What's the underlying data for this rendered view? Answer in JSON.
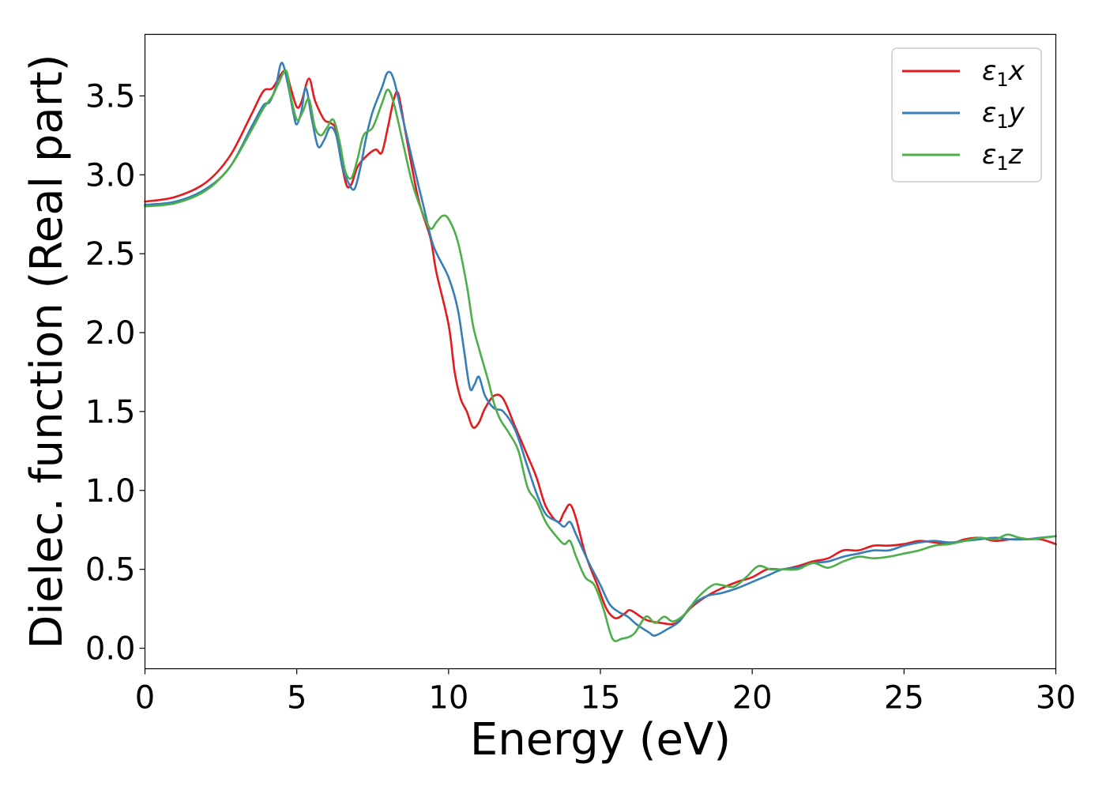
{
  "chart_data": {
    "type": "line",
    "title": "",
    "xlabel": "Energy (eV)",
    "ylabel": "Dielec. function (Real part)",
    "xlim": [
      0,
      30
    ],
    "ylim": [
      -0.13,
      3.89
    ],
    "xticks": [
      0,
      5,
      10,
      15,
      20,
      25,
      30
    ],
    "yticks": [
      0.0,
      0.5,
      1.0,
      1.5,
      2.0,
      2.5,
      3.0,
      3.5
    ],
    "xtick_labels": [
      "0",
      "5",
      "10",
      "15",
      "20",
      "25",
      "30"
    ],
    "ytick_labels": [
      "0.0",
      "0.5",
      "1.0",
      "1.5",
      "2.0",
      "2.5",
      "3.0",
      "3.5"
    ],
    "grid": false,
    "legend_position": "top-right",
    "series": [
      {
        "name": "ε₁x",
        "legend_main": "ε",
        "legend_sub": "1",
        "legend_tail": "x",
        "color": "#e41a1c",
        "points": [
          [
            0,
            2.83
          ],
          [
            1,
            2.86
          ],
          [
            2,
            2.95
          ],
          [
            2.8,
            3.12
          ],
          [
            3.5,
            3.38
          ],
          [
            3.9,
            3.53
          ],
          [
            4.2,
            3.55
          ],
          [
            4.6,
            3.66
          ],
          [
            4.8,
            3.55
          ],
          [
            5.0,
            3.43
          ],
          [
            5.15,
            3.46
          ],
          [
            5.4,
            3.61
          ],
          [
            5.6,
            3.47
          ],
          [
            5.9,
            3.35
          ],
          [
            6.1,
            3.33
          ],
          [
            6.3,
            3.28
          ],
          [
            6.5,
            3.05
          ],
          [
            6.65,
            2.93
          ],
          [
            6.8,
            2.94
          ],
          [
            7.0,
            3.05
          ],
          [
            7.3,
            3.12
          ],
          [
            7.6,
            3.16
          ],
          [
            7.8,
            3.14
          ],
          [
            8.0,
            3.3
          ],
          [
            8.2,
            3.48
          ],
          [
            8.35,
            3.51
          ],
          [
            8.6,
            3.25
          ],
          [
            9.0,
            2.85
          ],
          [
            9.4,
            2.6
          ],
          [
            9.6,
            2.38
          ],
          [
            10.0,
            2.05
          ],
          [
            10.2,
            1.75
          ],
          [
            10.4,
            1.58
          ],
          [
            10.6,
            1.5
          ],
          [
            10.8,
            1.4
          ],
          [
            11.0,
            1.43
          ],
          [
            11.2,
            1.52
          ],
          [
            11.5,
            1.6
          ],
          [
            11.8,
            1.58
          ],
          [
            12.2,
            1.4
          ],
          [
            12.6,
            1.22
          ],
          [
            12.9,
            1.08
          ],
          [
            13.2,
            0.9
          ],
          [
            13.6,
            0.8
          ],
          [
            13.8,
            0.86
          ],
          [
            14.0,
            0.91
          ],
          [
            14.2,
            0.82
          ],
          [
            14.5,
            0.6
          ],
          [
            14.9,
            0.4
          ],
          [
            15.2,
            0.25
          ],
          [
            15.5,
            0.19
          ],
          [
            15.8,
            0.22
          ],
          [
            16.0,
            0.24
          ],
          [
            16.5,
            0.18
          ],
          [
            17.0,
            0.16
          ],
          [
            17.5,
            0.16
          ],
          [
            18.0,
            0.26
          ],
          [
            18.5,
            0.33
          ],
          [
            19.0,
            0.38
          ],
          [
            19.5,
            0.42
          ],
          [
            20.0,
            0.45
          ],
          [
            20.5,
            0.5
          ],
          [
            21.0,
            0.5
          ],
          [
            21.5,
            0.52
          ],
          [
            22.0,
            0.55
          ],
          [
            22.5,
            0.57
          ],
          [
            23.0,
            0.62
          ],
          [
            23.5,
            0.62
          ],
          [
            24.0,
            0.65
          ],
          [
            24.5,
            0.65
          ],
          [
            25.0,
            0.66
          ],
          [
            25.5,
            0.68
          ],
          [
            26.0,
            0.67
          ],
          [
            26.5,
            0.66
          ],
          [
            27.0,
            0.69
          ],
          [
            27.5,
            0.7
          ],
          [
            28.0,
            0.68
          ],
          [
            28.5,
            0.69
          ],
          [
            29.0,
            0.69
          ],
          [
            29.5,
            0.69
          ],
          [
            30.0,
            0.66
          ]
        ]
      },
      {
        "name": "ε₁y",
        "legend_main": "ε",
        "legend_sub": "1",
        "legend_tail": "y",
        "color": "#377eb8",
        "points": [
          [
            0,
            2.81
          ],
          [
            1,
            2.83
          ],
          [
            2,
            2.91
          ],
          [
            2.8,
            3.05
          ],
          [
            3.5,
            3.3
          ],
          [
            3.9,
            3.44
          ],
          [
            4.1,
            3.46
          ],
          [
            4.3,
            3.55
          ],
          [
            4.5,
            3.71
          ],
          [
            4.7,
            3.58
          ],
          [
            4.9,
            3.38
          ],
          [
            5.0,
            3.32
          ],
          [
            5.15,
            3.4
          ],
          [
            5.3,
            3.55
          ],
          [
            5.5,
            3.35
          ],
          [
            5.7,
            3.18
          ],
          [
            5.9,
            3.22
          ],
          [
            6.1,
            3.3
          ],
          [
            6.3,
            3.25
          ],
          [
            6.5,
            3.05
          ],
          [
            6.7,
            2.95
          ],
          [
            6.9,
            2.91
          ],
          [
            7.1,
            3.05
          ],
          [
            7.3,
            3.25
          ],
          [
            7.5,
            3.4
          ],
          [
            7.8,
            3.55
          ],
          [
            8.0,
            3.65
          ],
          [
            8.2,
            3.6
          ],
          [
            8.5,
            3.35
          ],
          [
            8.8,
            3.1
          ],
          [
            9.2,
            2.78
          ],
          [
            9.5,
            2.55
          ],
          [
            10.0,
            2.35
          ],
          [
            10.3,
            2.15
          ],
          [
            10.5,
            1.9
          ],
          [
            10.7,
            1.65
          ],
          [
            10.85,
            1.67
          ],
          [
            11.0,
            1.72
          ],
          [
            11.2,
            1.6
          ],
          [
            11.5,
            1.52
          ],
          [
            11.8,
            1.5
          ],
          [
            12.2,
            1.38
          ],
          [
            12.6,
            1.15
          ],
          [
            12.9,
            0.98
          ],
          [
            13.2,
            0.85
          ],
          [
            13.6,
            0.8
          ],
          [
            13.8,
            0.77
          ],
          [
            14.0,
            0.8
          ],
          [
            14.2,
            0.72
          ],
          [
            14.6,
            0.55
          ],
          [
            15.0,
            0.4
          ],
          [
            15.3,
            0.28
          ],
          [
            15.6,
            0.23
          ],
          [
            15.9,
            0.2
          ],
          [
            16.2,
            0.15
          ],
          [
            16.6,
            0.1
          ],
          [
            16.8,
            0.08
          ],
          [
            17.2,
            0.12
          ],
          [
            17.6,
            0.17
          ],
          [
            18.0,
            0.27
          ],
          [
            18.5,
            0.33
          ],
          [
            19.0,
            0.35
          ],
          [
            19.5,
            0.38
          ],
          [
            20.0,
            0.42
          ],
          [
            20.5,
            0.46
          ],
          [
            21.0,
            0.5
          ],
          [
            21.5,
            0.51
          ],
          [
            22.0,
            0.54
          ],
          [
            22.5,
            0.55
          ],
          [
            23.0,
            0.58
          ],
          [
            23.5,
            0.6
          ],
          [
            24.0,
            0.62
          ],
          [
            24.5,
            0.62
          ],
          [
            25.0,
            0.65
          ],
          [
            25.5,
            0.67
          ],
          [
            26.0,
            0.68
          ],
          [
            26.5,
            0.67
          ],
          [
            27.0,
            0.68
          ],
          [
            27.5,
            0.69
          ],
          [
            28.0,
            0.7
          ],
          [
            28.5,
            0.69
          ],
          [
            29.0,
            0.69
          ],
          [
            29.5,
            0.7
          ],
          [
            30.0,
            0.71
          ]
        ]
      },
      {
        "name": "ε₁z",
        "legend_main": "ε",
        "legend_sub": "1",
        "legend_tail": "z",
        "color": "#4daf4a",
        "points": [
          [
            0,
            2.8
          ],
          [
            1,
            2.82
          ],
          [
            2,
            2.9
          ],
          [
            2.8,
            3.05
          ],
          [
            3.5,
            3.28
          ],
          [
            3.9,
            3.42
          ],
          [
            4.2,
            3.5
          ],
          [
            4.4,
            3.58
          ],
          [
            4.65,
            3.66
          ],
          [
            4.8,
            3.5
          ],
          [
            5.0,
            3.35
          ],
          [
            5.2,
            3.4
          ],
          [
            5.4,
            3.48
          ],
          [
            5.6,
            3.3
          ],
          [
            5.8,
            3.25
          ],
          [
            6.0,
            3.3
          ],
          [
            6.2,
            3.35
          ],
          [
            6.4,
            3.22
          ],
          [
            6.6,
            3.02
          ],
          [
            6.8,
            2.98
          ],
          [
            7.0,
            3.1
          ],
          [
            7.2,
            3.25
          ],
          [
            7.5,
            3.3
          ],
          [
            7.8,
            3.45
          ],
          [
            8.0,
            3.54
          ],
          [
            8.2,
            3.45
          ],
          [
            8.5,
            3.2
          ],
          [
            8.8,
            2.95
          ],
          [
            9.1,
            2.78
          ],
          [
            9.4,
            2.66
          ],
          [
            9.6,
            2.7
          ],
          [
            9.8,
            2.74
          ],
          [
            10.0,
            2.72
          ],
          [
            10.3,
            2.58
          ],
          [
            10.6,
            2.3
          ],
          [
            10.8,
            2.05
          ],
          [
            11.0,
            1.9
          ],
          [
            11.3,
            1.7
          ],
          [
            11.5,
            1.55
          ],
          [
            11.7,
            1.45
          ],
          [
            12.0,
            1.36
          ],
          [
            12.3,
            1.25
          ],
          [
            12.6,
            1.02
          ],
          [
            12.9,
            0.93
          ],
          [
            13.2,
            0.8
          ],
          [
            13.5,
            0.72
          ],
          [
            13.8,
            0.66
          ],
          [
            14.0,
            0.68
          ],
          [
            14.2,
            0.58
          ],
          [
            14.5,
            0.45
          ],
          [
            14.8,
            0.4
          ],
          [
            15.1,
            0.25
          ],
          [
            15.4,
            0.06
          ],
          [
            15.7,
            0.06
          ],
          [
            16.1,
            0.09
          ],
          [
            16.5,
            0.2
          ],
          [
            16.8,
            0.16
          ],
          [
            17.1,
            0.2
          ],
          [
            17.4,
            0.17
          ],
          [
            17.8,
            0.22
          ],
          [
            18.2,
            0.32
          ],
          [
            18.7,
            0.4
          ],
          [
            19.0,
            0.4
          ],
          [
            19.4,
            0.39
          ],
          [
            19.8,
            0.45
          ],
          [
            20.2,
            0.52
          ],
          [
            20.6,
            0.5
          ],
          [
            21.0,
            0.5
          ],
          [
            21.5,
            0.5
          ],
          [
            22.0,
            0.54
          ],
          [
            22.5,
            0.51
          ],
          [
            23.0,
            0.55
          ],
          [
            23.5,
            0.58
          ],
          [
            24.0,
            0.57
          ],
          [
            24.5,
            0.58
          ],
          [
            25.0,
            0.6
          ],
          [
            25.5,
            0.62
          ],
          [
            26.0,
            0.65
          ],
          [
            26.5,
            0.66
          ],
          [
            27.0,
            0.68
          ],
          [
            27.5,
            0.7
          ],
          [
            28.0,
            0.69
          ],
          [
            28.4,
            0.72
          ],
          [
            28.8,
            0.7
          ],
          [
            29.2,
            0.69
          ],
          [
            29.6,
            0.7
          ],
          [
            30.0,
            0.71
          ]
        ]
      }
    ]
  }
}
